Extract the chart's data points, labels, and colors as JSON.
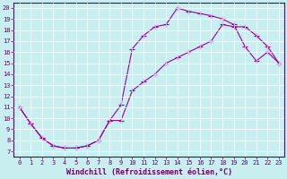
{
  "xlabel": "Windchill (Refroidissement éolien,°C)",
  "bg_color": "#c8eef0",
  "line_color": "#990099",
  "xlim": [
    -0.5,
    23.5
  ],
  "ylim": [
    6.5,
    20.5
  ],
  "xticks": [
    0,
    1,
    2,
    3,
    4,
    5,
    6,
    7,
    8,
    9,
    10,
    11,
    12,
    13,
    14,
    15,
    16,
    17,
    18,
    19,
    20,
    21,
    22,
    23
  ],
  "yticks": [
    7,
    8,
    9,
    10,
    11,
    12,
    13,
    14,
    15,
    16,
    17,
    18,
    19,
    20
  ],
  "line1_x": [
    0,
    1,
    2,
    3,
    4,
    5,
    6,
    7,
    8,
    9,
    10,
    11,
    12,
    13,
    14,
    15,
    16,
    17,
    18,
    19,
    20,
    21,
    22,
    23
  ],
  "line1_y": [
    11,
    9.5,
    8.2,
    7.5,
    7.3,
    7.3,
    7.5,
    8.0,
    9.8,
    11.2,
    16.3,
    17.5,
    18.3,
    18.5,
    20.0,
    19.7,
    19.5,
    19.3,
    19.0,
    18.5,
    16.5,
    15.2,
    16.0,
    15.0
  ],
  "line2_x": [
    0,
    1,
    2,
    3,
    4,
    5,
    6,
    7,
    8,
    9,
    10,
    11,
    12,
    13,
    14,
    15,
    16,
    17,
    18,
    19,
    20,
    21,
    22,
    23
  ],
  "line2_y": [
    11,
    9.5,
    8.2,
    7.5,
    7.3,
    7.3,
    7.5,
    8.0,
    9.8,
    9.8,
    12.5,
    13.3,
    14.0,
    15.0,
    15.5,
    16.0,
    16.5,
    17.0,
    18.5,
    18.3,
    18.3,
    17.5,
    16.5,
    15.0
  ],
  "grid_color": "#ffffff",
  "tick_fontsize": 5,
  "xlabel_fontsize": 6,
  "marker": "+",
  "markersize": 4,
  "linewidth": 0.8
}
